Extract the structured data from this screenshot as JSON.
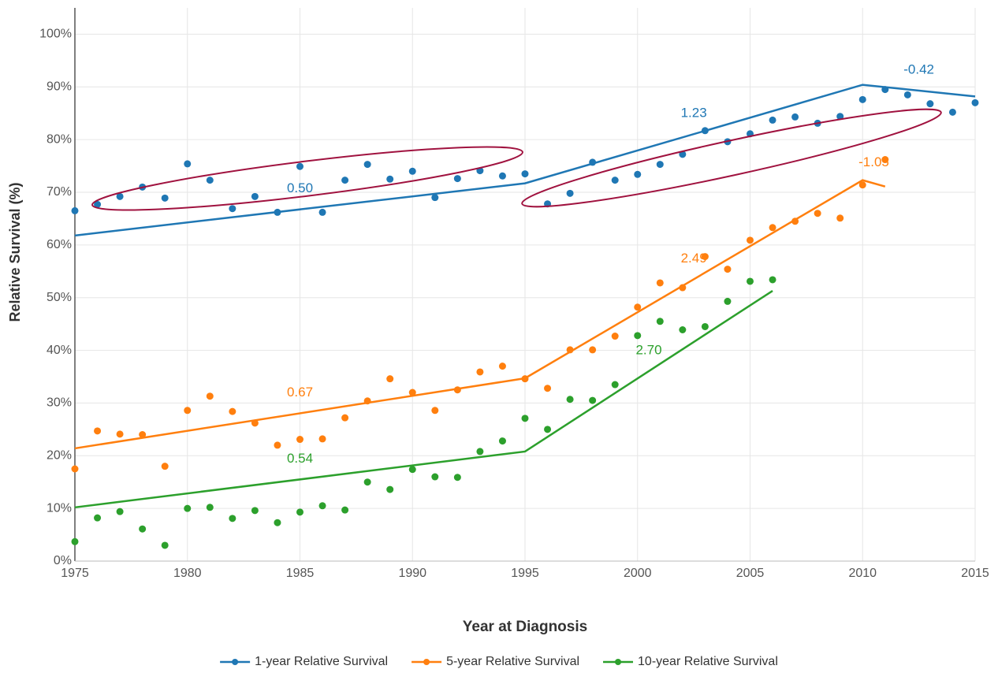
{
  "chart_data": {
    "type": "scatter",
    "x_label": "Year at Diagnosis",
    "y_label": "Relative Survival (%)",
    "xlim": [
      1975,
      2015
    ],
    "ylim": [
      0,
      105
    ],
    "xticks": [
      1975,
      1980,
      1985,
      1990,
      1995,
      2000,
      2005,
      2010,
      2015
    ],
    "yticks": [
      {
        "value": 0,
        "label": "0%"
      },
      {
        "value": 10,
        "label": "10%"
      },
      {
        "value": 20,
        "label": "20%"
      },
      {
        "value": 30,
        "label": "30%"
      },
      {
        "value": 40,
        "label": "40%"
      },
      {
        "value": 50,
        "label": "50%"
      },
      {
        "value": 60,
        "label": "60%"
      },
      {
        "value": 70,
        "label": "70%"
      },
      {
        "value": 80,
        "label": "80%"
      },
      {
        "value": 90,
        "label": "90%"
      },
      {
        "value": 100,
        "label": "100%"
      }
    ],
    "grid": true,
    "legend": "bottom",
    "series": [
      {
        "name": "1-year Relative Survival",
        "color": "#1f77b4",
        "x": [
          1975,
          1976,
          1977,
          1978,
          1979,
          1980,
          1981,
          1982,
          1983,
          1984,
          1985,
          1986,
          1987,
          1988,
          1989,
          1990,
          1991,
          1992,
          1993,
          1994,
          1995,
          1996,
          1997,
          1998,
          1999,
          2000,
          2001,
          2002,
          2003,
          2004,
          2005,
          2006,
          2007,
          2008,
          2009,
          2010,
          2011,
          2012,
          2013,
          2014,
          2015
        ],
        "values": [
          66.5,
          67.7,
          69.2,
          71.0,
          68.9,
          75.4,
          72.3,
          66.9,
          69.2,
          66.2,
          74.9,
          66.2,
          72.3,
          75.3,
          72.5,
          74.0,
          69.0,
          72.6,
          74.1,
          73.1,
          73.5,
          67.8,
          69.8,
          75.7,
          72.3,
          73.4,
          75.3,
          77.2,
          81.7,
          79.6,
          81.1,
          83.7,
          84.3,
          83.1,
          84.4,
          87.6,
          89.5,
          88.5,
          86.8,
          85.2,
          87.0
        ],
        "trend": {
          "x": [
            1975,
            1995,
            2010,
            2015
          ],
          "values": [
            61.8,
            71.7,
            90.4,
            88.2
          ],
          "labels": [
            "0.50",
            "1.23",
            "-0.42"
          ]
        }
      },
      {
        "name": "5-year Relative Survival",
        "color": "#ff7f0e",
        "x": [
          1975,
          1976,
          1977,
          1978,
          1979,
          1980,
          1981,
          1982,
          1983,
          1984,
          1985,
          1986,
          1987,
          1988,
          1989,
          1990,
          1991,
          1992,
          1993,
          1994,
          1995,
          1996,
          1997,
          1998,
          1999,
          2000,
          2001,
          2002,
          2003,
          2004,
          2005,
          2006,
          2007,
          2008,
          2009,
          2010,
          2011
        ],
        "values": [
          17.5,
          24.7,
          24.1,
          24.0,
          18.0,
          28.6,
          31.3,
          28.4,
          26.2,
          22.0,
          23.1,
          23.2,
          27.2,
          30.4,
          34.6,
          32.0,
          28.6,
          32.5,
          35.9,
          37.0,
          34.6,
          32.8,
          40.1,
          40.1,
          42.7,
          48.2,
          52.8,
          51.9,
          57.8,
          55.4,
          60.9,
          63.3,
          64.5,
          66.0,
          65.1,
          71.4,
          76.2
        ],
        "trend": {
          "x": [
            1975,
            1995,
            2010,
            2011
          ],
          "values": [
            21.4,
            34.7,
            72.3,
            71.1
          ],
          "labels": [
            "0.67",
            "2.49",
            "-1.05"
          ]
        }
      },
      {
        "name": "10-year Relative Survival",
        "color": "#2ca02c",
        "x": [
          1975,
          1976,
          1977,
          1978,
          1979,
          1980,
          1981,
          1982,
          1983,
          1984,
          1985,
          1986,
          1987,
          1988,
          1989,
          1990,
          1991,
          1992,
          1993,
          1994,
          1995,
          1996,
          1997,
          1998,
          1999,
          2000,
          2001,
          2002,
          2003,
          2004,
          2005,
          2006
        ],
        "values": [
          3.7,
          8.2,
          9.4,
          6.1,
          3.0,
          10.0,
          10.2,
          8.1,
          9.6,
          7.3,
          9.3,
          10.5,
          9.7,
          15.0,
          13.6,
          17.4,
          16.0,
          15.9,
          20.8,
          22.8,
          27.1,
          25.0,
          30.7,
          30.5,
          33.5,
          42.8,
          45.5,
          43.9,
          44.5,
          49.3,
          53.1,
          53.4
        ],
        "trend": {
          "x": [
            1975,
            1995,
            2006
          ],
          "values": [
            10.2,
            20.8,
            51.3
          ],
          "labels": [
            "0.54",
            "2.70"
          ]
        }
      }
    ]
  }
}
